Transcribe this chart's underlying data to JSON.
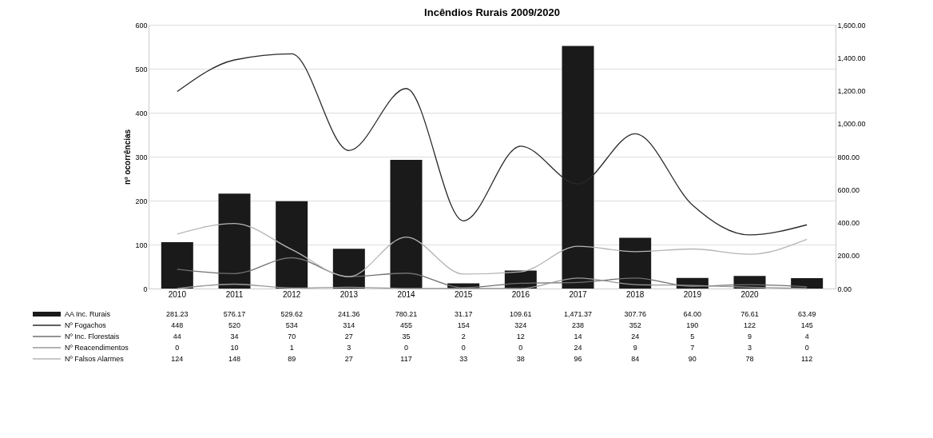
{
  "chart_data": {
    "type": "bar",
    "title": "Incêndios Rurais  2009/2020",
    "ylabel": "nº ocorrências",
    "categories": [
      "2010",
      "2011",
      "2012",
      "2013",
      "2014",
      "2015",
      "2016",
      "2017",
      "2018",
      "2019",
      "2020",
      null
    ],
    "series": [
      {
        "name": "AA Inc. Rurais",
        "axis": "y2",
        "color": "#1a1a1a",
        "values": [
          281.23,
          576.17,
          529.62,
          241.36,
          780.21,
          31.17,
          109.61,
          1471.37,
          307.76,
          64.0,
          76.61,
          63.49
        ],
        "value_labels": [
          "281.23",
          "576.17",
          "529.62",
          "241.36",
          "780.21",
          "31.17",
          "109.61",
          "1,471.37",
          "307.76",
          "64.00",
          "76.61",
          "63.49"
        ]
      },
      {
        "name": "Nº Fogachos",
        "type": "line",
        "color": "#2a2a2a",
        "values": [
          448,
          520,
          534,
          314,
          455,
          154,
          324,
          238,
          352,
          190,
          122,
          145
        ]
      },
      {
        "name": "Nº Inc. Florestais",
        "type": "line",
        "color": "#707070",
        "values": [
          44,
          34,
          70,
          27,
          35,
          2,
          12,
          14,
          24,
          5,
          9,
          4
        ]
      },
      {
        "name": "Nº Reacendimentos",
        "type": "line",
        "color": "#9a9a9a",
        "values": [
          0,
          10,
          1,
          3,
          0,
          0,
          0,
          24,
          9,
          7,
          3,
          0
        ]
      },
      {
        "name": "Nº Falsos Alarmes",
        "type": "line",
        "color": "#b5b5b5",
        "values": [
          124,
          148,
          89,
          27,
          117,
          33,
          38,
          96,
          84,
          90,
          78,
          112
        ]
      }
    ],
    "ylim": [
      0,
      600
    ],
    "yticks": [
      0,
      100,
      200,
      300,
      400,
      500,
      600
    ],
    "y2lim": [
      0,
      1600
    ],
    "y2ticks": [
      {
        "value": 0,
        "label": "0.00"
      },
      {
        "value": 200,
        "label": "200.00"
      },
      {
        "value": 400,
        "label": "400.00"
      },
      {
        "value": 600,
        "label": "600.00"
      },
      {
        "value": 800,
        "label": "800.00"
      },
      {
        "value": 1000,
        "label": "1,000.00"
      },
      {
        "value": 1200,
        "label": "1,200.00"
      },
      {
        "value": 1400,
        "label": "1,400.00"
      },
      {
        "value": 1600,
        "label": "1,600.00"
      }
    ],
    "grid": "y",
    "legend": "bottom",
    "data_labels": true,
    "marker": "none",
    "line_style": "solid"
  }
}
